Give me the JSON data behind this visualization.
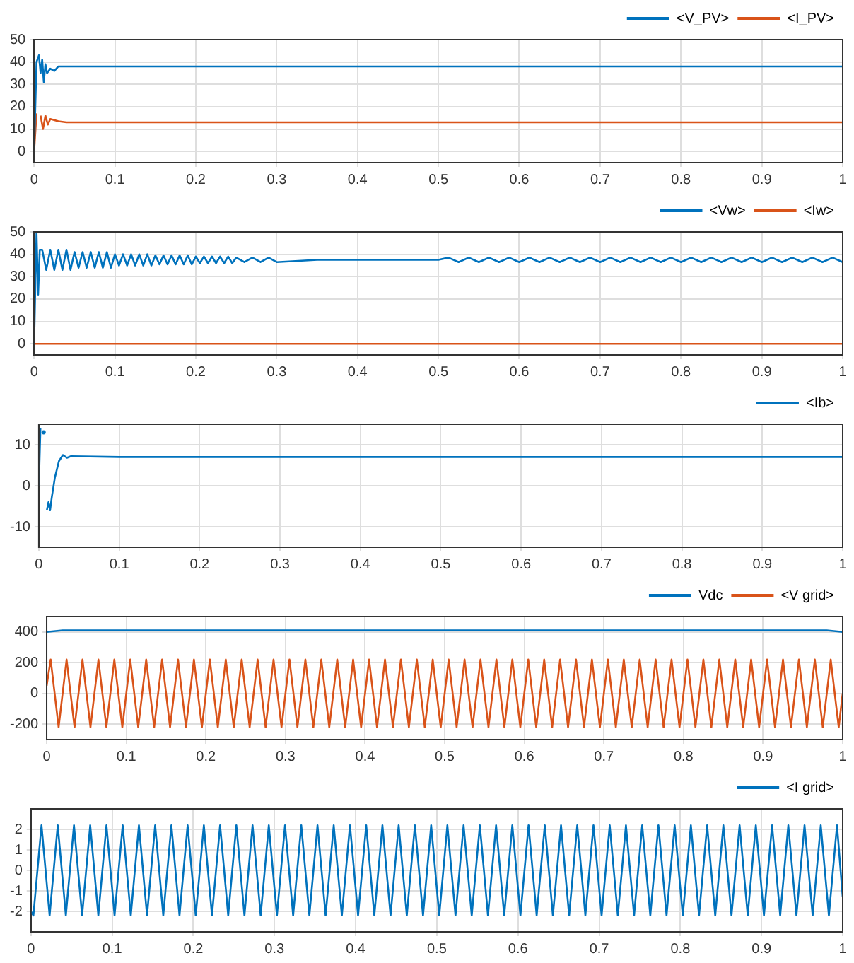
{
  "chart_data": [
    {
      "type": "line",
      "xlim": [
        0,
        1
      ],
      "xticks": [
        0,
        0.1,
        0.2,
        0.3,
        0.4,
        0.5,
        0.6,
        0.7,
        0.8,
        0.9,
        1
      ],
      "ylim": [
        -5,
        50
      ],
      "yticks": [
        0,
        10,
        20,
        30,
        40,
        50
      ],
      "grid": true,
      "legend": "top right",
      "series": [
        {
          "name": "<V_PV>",
          "color": "#0072bd",
          "x": [
            0,
            0.003,
            0.006,
            0.008,
            0.01,
            0.012,
            0.014,
            0.016,
            0.02,
            0.025,
            0.03,
            0.04,
            0.1,
            0.5,
            1
          ],
          "values": [
            0,
            40,
            43,
            35,
            41,
            31,
            39,
            35,
            37,
            36,
            38,
            38,
            38,
            38,
            38
          ]
        },
        {
          "name": "<I_PV>",
          "color": "#d95319",
          "x": [
            0,
            0.003,
            0.005,
            0.008,
            0.011,
            0.014,
            0.017,
            0.02,
            0.03,
            0.04,
            0.1,
            0.5,
            1
          ],
          "values": [
            0,
            17,
            null,
            16,
            10,
            16,
            12,
            14.5,
            13.5,
            13,
            13,
            13,
            13
          ]
        }
      ]
    },
    {
      "type": "line",
      "xlim": [
        0,
        1
      ],
      "xticks": [
        0,
        0.1,
        0.2,
        0.3,
        0.4,
        0.5,
        0.6,
        0.7,
        0.8,
        0.9,
        1
      ],
      "ylim": [
        -5,
        50
      ],
      "yticks": [
        0,
        10,
        20,
        30,
        40,
        50
      ],
      "grid": true,
      "legend": "top right",
      "series": [
        {
          "name": "<Vw>",
          "color": "#0072bd",
          "x": [
            0,
            0.003,
            0.005,
            0.007,
            0.01,
            0.015,
            0.02,
            0.025,
            0.03,
            0.035,
            0.04,
            0.045,
            0.05,
            0.055,
            0.06,
            0.065,
            0.07,
            0.075,
            0.08,
            0.085,
            0.09,
            0.095,
            0.1,
            0.105,
            0.11,
            0.115,
            0.12,
            0.125,
            0.13,
            0.135,
            0.14,
            0.145,
            0.15,
            0.155,
            0.16,
            0.165,
            0.17,
            0.175,
            0.18,
            0.185,
            0.19,
            0.195,
            0.2,
            0.205,
            0.21,
            0.215,
            0.22,
            0.225,
            0.23,
            0.235,
            0.24,
            0.245,
            0.25,
            0.26,
            0.27,
            0.28,
            0.29,
            0.3,
            0.35,
            0.4,
            0.45,
            0.5,
            0.5125,
            0.525,
            0.5375,
            0.55,
            0.5625,
            0.575,
            0.5875,
            0.6,
            0.6125,
            0.625,
            0.6375,
            0.65,
            0.6625,
            0.675,
            0.6875,
            0.7,
            0.7125,
            0.725,
            0.7375,
            0.75,
            0.7625,
            0.775,
            0.7875,
            0.8,
            0.8125,
            0.825,
            0.8375,
            0.85,
            0.8625,
            0.875,
            0.8875,
            0.9,
            0.9125,
            0.925,
            0.9375,
            0.95,
            0.9625,
            0.975,
            0.9875,
            1
          ],
          "values": [
            0,
            50,
            22,
            42,
            42,
            33,
            42,
            33,
            42,
            33,
            42,
            33,
            41,
            34,
            41,
            34,
            41,
            34,
            41,
            34,
            41,
            34,
            40,
            35,
            40,
            35,
            40,
            35,
            40,
            35,
            40,
            35,
            39.5,
            35.5,
            39.5,
            35.5,
            39.5,
            35.5,
            39.5,
            35.5,
            39.5,
            35.5,
            39,
            36,
            39,
            36,
            39,
            36,
            39,
            36,
            39,
            36,
            38.5,
            36.5,
            38.5,
            36.5,
            38.5,
            36.5,
            37.5,
            37.5,
            37.5,
            37.5,
            38.5,
            36.5,
            38.5,
            36.5,
            38.5,
            36.5,
            38.5,
            36.5,
            38.5,
            36.5,
            38.5,
            36.5,
            38.5,
            36.5,
            38.5,
            36.5,
            38.5,
            36.5,
            38.5,
            36.5,
            38.5,
            36.5,
            38.5,
            36.5,
            38.5,
            36.5,
            38.5,
            36.5,
            38.5,
            36.5,
            38.5,
            36.5,
            38.5,
            36.5,
            38.5,
            36.5,
            38.5,
            36.5,
            38.5,
            36.5
          ]
        },
        {
          "name": "<Iw>",
          "color": "#d95319",
          "x": [
            0,
            1
          ],
          "values": [
            0,
            0
          ]
        }
      ]
    },
    {
      "type": "line",
      "xlim": [
        0,
        1
      ],
      "xticks": [
        0,
        0.1,
        0.2,
        0.3,
        0.4,
        0.5,
        0.6,
        0.7,
        0.8,
        0.9,
        1
      ],
      "ylim": [
        -15,
        15
      ],
      "yticks": [
        -10,
        0,
        10
      ],
      "grid": true,
      "legend": "top right",
      "series": [
        {
          "name": "<Ib>",
          "color": "#0072bd",
          "x": [
            0,
            0.002,
            0.004,
            0.006,
            0.008,
            0.01,
            0.012,
            0.014,
            0.016,
            0.02,
            0.025,
            0.03,
            0.035,
            0.04,
            0.1,
            0.3,
            0.5,
            0.7,
            1
          ],
          "values": [
            0,
            14,
            null,
            13,
            null,
            -6,
            -4,
            -6,
            -3,
            2,
            6,
            7.5,
            6.8,
            7.2,
            7,
            7,
            7,
            7,
            7
          ]
        }
      ]
    },
    {
      "type": "line",
      "xlim": [
        0,
        1
      ],
      "xticks": [
        0,
        0.1,
        0.2,
        0.3,
        0.4,
        0.5,
        0.6,
        0.7,
        0.8,
        0.9,
        1
      ],
      "ylim": [
        -300,
        500
      ],
      "yticks": [
        -200,
        0,
        200,
        400
      ],
      "grid": true,
      "legend": "top right",
      "series": [
        {
          "name": "Vdc",
          "color": "#0072bd",
          "x": [
            0,
            0.02,
            0.1,
            0.5,
            0.98,
            1
          ],
          "values": [
            400,
            410,
            410,
            410,
            410,
            400
          ]
        },
        {
          "name": "<V grid>",
          "color": "#d95319",
          "x": [
            0,
            0.005,
            0.015,
            0.025,
            0.035,
            0.045,
            0.055,
            0.065,
            0.075,
            0.085,
            0.095,
            0.105,
            0.115,
            0.125,
            0.135,
            0.145,
            0.155,
            0.165,
            0.175,
            0.185,
            0.195,
            0.205,
            0.215,
            0.225,
            0.235,
            0.245,
            0.255,
            0.265,
            0.275,
            0.285,
            0.295,
            0.305,
            0.315,
            0.325,
            0.335,
            0.345,
            0.355,
            0.365,
            0.375,
            0.385,
            0.395,
            0.405,
            0.415,
            0.425,
            0.435,
            0.445,
            0.455,
            0.465,
            0.475,
            0.485,
            0.495,
            0.505,
            0.515,
            0.525,
            0.535,
            0.545,
            0.555,
            0.565,
            0.575,
            0.585,
            0.595,
            0.605,
            0.615,
            0.625,
            0.635,
            0.645,
            0.655,
            0.665,
            0.675,
            0.685,
            0.695,
            0.705,
            0.715,
            0.725,
            0.735,
            0.745,
            0.755,
            0.765,
            0.775,
            0.785,
            0.795,
            0.805,
            0.815,
            0.825,
            0.835,
            0.845,
            0.855,
            0.865,
            0.875,
            0.885,
            0.895,
            0.905,
            0.915,
            0.925,
            0.935,
            0.945,
            0.955,
            0.965,
            0.975,
            0.985,
            0.995,
            1
          ],
          "values": [
            50,
            220,
            -220,
            220,
            -220,
            220,
            -220,
            220,
            -220,
            220,
            -220,
            220,
            -220,
            220,
            -220,
            220,
            -220,
            220,
            -220,
            220,
            -220,
            220,
            -220,
            220,
            -220,
            220,
            -220,
            220,
            -220,
            220,
            -220,
            220,
            -220,
            220,
            -220,
            220,
            -220,
            220,
            -220,
            220,
            -220,
            220,
            -220,
            220,
            -220,
            220,
            -220,
            220,
            -220,
            220,
            -220,
            220,
            -220,
            220,
            -220,
            220,
            -220,
            220,
            -220,
            220,
            -220,
            220,
            -220,
            220,
            -220,
            220,
            -220,
            220,
            -220,
            220,
            -220,
            220,
            -220,
            220,
            -220,
            220,
            -220,
            220,
            -220,
            220,
            -220,
            220,
            -220,
            220,
            -220,
            220,
            -220,
            220,
            -220,
            220,
            -220,
            220,
            -220,
            220,
            -220,
            220,
            -220,
            220,
            -220,
            220,
            -220,
            0
          ]
        }
      ]
    },
    {
      "type": "line",
      "xlim": [
        0,
        1
      ],
      "xticks": [
        0,
        0.1,
        0.2,
        0.3,
        0.4,
        0.5,
        0.6,
        0.7,
        0.8,
        0.9,
        1
      ],
      "ylim": [
        -3,
        3
      ],
      "yticks": [
        -2,
        -1,
        0,
        1,
        2
      ],
      "grid": true,
      "legend": "top right",
      "series": [
        {
          "name": "<I grid>",
          "color": "#0072bd",
          "x": [
            0,
            0.003,
            0.013,
            0.023,
            0.033,
            0.043,
            0.053,
            0.063,
            0.073,
            0.083,
            0.093,
            0.103,
            0.113,
            0.123,
            0.133,
            0.143,
            0.153,
            0.163,
            0.173,
            0.183,
            0.193,
            0.203,
            0.213,
            0.223,
            0.233,
            0.243,
            0.253,
            0.263,
            0.273,
            0.283,
            0.293,
            0.303,
            0.313,
            0.323,
            0.333,
            0.343,
            0.353,
            0.363,
            0.373,
            0.383,
            0.393,
            0.403,
            0.413,
            0.423,
            0.433,
            0.443,
            0.453,
            0.463,
            0.473,
            0.483,
            0.493,
            0.503,
            0.513,
            0.523,
            0.533,
            0.543,
            0.553,
            0.563,
            0.573,
            0.583,
            0.593,
            0.603,
            0.613,
            0.623,
            0.633,
            0.643,
            0.653,
            0.663,
            0.673,
            0.683,
            0.693,
            0.703,
            0.713,
            0.723,
            0.733,
            0.743,
            0.753,
            0.763,
            0.773,
            0.783,
            0.793,
            0.803,
            0.813,
            0.823,
            0.833,
            0.843,
            0.853,
            0.863,
            0.873,
            0.883,
            0.893,
            0.903,
            0.913,
            0.923,
            0.933,
            0.943,
            0.953,
            0.963,
            0.973,
            0.983,
            0.993,
            1
          ],
          "values": [
            -2,
            -2.2,
            2.2,
            -2.2,
            2.2,
            -2.2,
            2.2,
            -2.2,
            2.2,
            -2.2,
            2.2,
            -2.2,
            2.2,
            -2.2,
            2.2,
            -2.2,
            2.2,
            -2.2,
            2.2,
            -2.2,
            2.2,
            -2.2,
            2.2,
            -2.2,
            2.2,
            -2.2,
            2.2,
            -2.2,
            2.2,
            -2.2,
            2.2,
            -2.2,
            2.2,
            -2.2,
            2.2,
            -2.2,
            2.2,
            -2.2,
            2.2,
            -2.2,
            2.2,
            -2.2,
            2.2,
            -2.2,
            2.2,
            -2.2,
            2.2,
            -2.2,
            2.2,
            -2.2,
            2.2,
            -2.2,
            2.2,
            -2.2,
            2.2,
            -2.2,
            2.2,
            -2.2,
            2.2,
            -2.2,
            2.2,
            -2.2,
            2.2,
            -2.2,
            2.2,
            -2.2,
            2.2,
            -2.2,
            2.2,
            -2.2,
            2.2,
            -2.2,
            2.2,
            -2.2,
            2.2,
            -2.2,
            2.2,
            -2.2,
            2.2,
            -2.2,
            2.2,
            -2.2,
            2.2,
            -2.2,
            2.2,
            -2.2,
            2.2,
            -2.2,
            2.2,
            -2.2,
            2.2,
            -2.2,
            2.2,
            -2.2,
            2.2,
            -2.2,
            2.2,
            -2.2,
            2.2,
            -2.2,
            2.2,
            -1.3
          ]
        }
      ]
    }
  ]
}
